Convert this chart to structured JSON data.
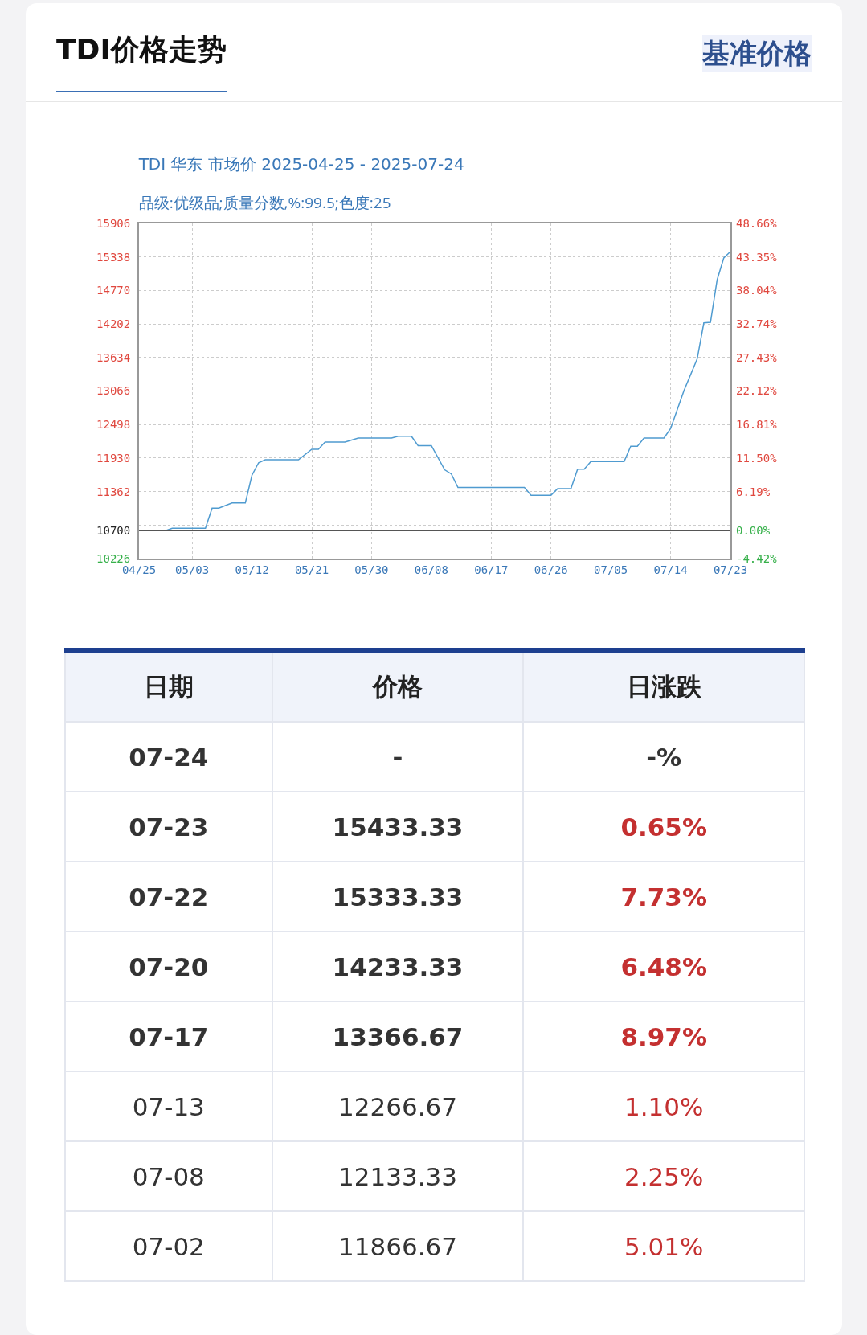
{
  "chart_data": [
    {
      "type": "other",
      "title": "TDI价格走势",
      "annotations": [
        "基准价格"
      ]
    },
    {
      "type": "line",
      "title": "TDI 华东 市场价 2025-04-25 - 2025-07-24",
      "subtitle": "品级:优级品;质量分数,%:99.5;色度:25",
      "x": [
        "2025-04-25",
        "2025-04-29",
        "2025-04-30",
        "2025-05-05",
        "2025-05-06",
        "2025-05-07",
        "2025-05-09",
        "2025-05-11",
        "2025-05-12",
        "2025-05-13",
        "2025-05-14",
        "2025-05-19",
        "2025-05-21",
        "2025-05-22",
        "2025-05-23",
        "2025-05-26",
        "2025-05-28",
        "2025-06-02",
        "2025-06-03",
        "2025-06-05",
        "2025-06-06",
        "2025-06-08",
        "2025-06-10",
        "2025-06-11",
        "2025-06-12",
        "2025-06-22",
        "2025-06-23",
        "2025-06-26",
        "2025-06-27",
        "2025-06-29",
        "2025-06-30",
        "2025-07-01",
        "2025-07-02",
        "2025-07-07",
        "2025-07-08",
        "2025-07-09",
        "2025-07-10",
        "2025-07-13",
        "2025-07-14",
        "2025-07-16",
        "2025-07-18",
        "2025-07-19",
        "2025-07-20",
        "2025-07-21",
        "2025-07-22",
        "2025-07-23"
      ],
      "series": [
        {
          "color": "#4f9bd0",
          "values": [
            10700,
            10700,
            10740,
            10740,
            11080,
            11080,
            11170,
            11170,
            11640,
            11850,
            11900,
            11900,
            12080,
            12080,
            12200,
            12200,
            12270,
            12270,
            12300,
            12300,
            12140,
            12140,
            11730,
            11660,
            11430,
            11430,
            11300,
            11300,
            11410,
            11410,
            11740,
            11740,
            11870,
            11870,
            12130,
            12130,
            12270,
            12270,
            12430,
            13070,
            13610,
            14220,
            14230,
            14950,
            15320,
            15430
          ]
        }
      ],
      "xlim": [
        "2025-04-25",
        "2025-07-23"
      ],
      "xticks": [
        {
          "value": "2025-04-25",
          "label": "04/25"
        },
        {
          "value": "2025-05-03",
          "label": "05/03"
        },
        {
          "value": "2025-05-12",
          "label": "05/12"
        },
        {
          "value": "2025-05-21",
          "label": "05/21"
        },
        {
          "value": "2025-05-30",
          "label": "05/30"
        },
        {
          "value": "2025-06-08",
          "label": "06/08"
        },
        {
          "value": "2025-06-17",
          "label": "06/17"
        },
        {
          "value": "2025-06-26",
          "label": "06/26"
        },
        {
          "value": "2025-07-05",
          "label": "07/05"
        },
        {
          "value": "2025-07-14",
          "label": "07/14"
        },
        {
          "value": "2025-07-23",
          "label": "07/23"
        }
      ],
      "ylim": [
        10226,
        15906
      ],
      "yticks": [
        10226,
        10700,
        {
          "value": 10794,
          "label": null
        },
        11362,
        11930,
        12498,
        13066,
        13634,
        14202,
        14770,
        15338,
        15906
      ],
      "y2lim": [
        -4.42,
        48.66
      ],
      "y2ticks": [
        {
          "value": -4.42,
          "label": "-4.42%"
        },
        {
          "value": 0,
          "label": "0.00%"
        },
        {
          "value": 6.19,
          "label": "6.19%"
        },
        {
          "value": 11.5,
          "label": "11.50%"
        },
        {
          "value": 16.81,
          "label": "16.81%"
        },
        {
          "value": 22.12,
          "label": "22.12%"
        },
        {
          "value": 27.43,
          "label": "27.43%"
        },
        {
          "value": 32.74,
          "label": "32.74%"
        },
        {
          "value": 38.04,
          "label": "38.04%"
        },
        {
          "value": 43.35,
          "label": "43.35%"
        },
        {
          "value": 48.66,
          "label": "48.66%"
        }
      ],
      "ref_lines": [
        {
          "axis": "y",
          "value": 10700,
          "color": "#555555"
        }
      ],
      "grid": true,
      "line_style": "solid",
      "marker": "none"
    },
    {
      "type": "other",
      "annotations": [
        "日期",
        "价格",
        "日涨跌",
        "07-24",
        "-",
        "-%",
        "07-23",
        "15433.33",
        "0.65%",
        "07-22",
        "15333.33",
        "7.73%",
        "07-20",
        "14233.33",
        "6.48%",
        "07-17",
        "13366.67",
        "8.97%",
        "07-13",
        "12266.67",
        "1.10%",
        "07-08",
        "12133.33",
        "2.25%",
        "07-02",
        "11866.67",
        "5.01%"
      ]
    }
  ]
}
